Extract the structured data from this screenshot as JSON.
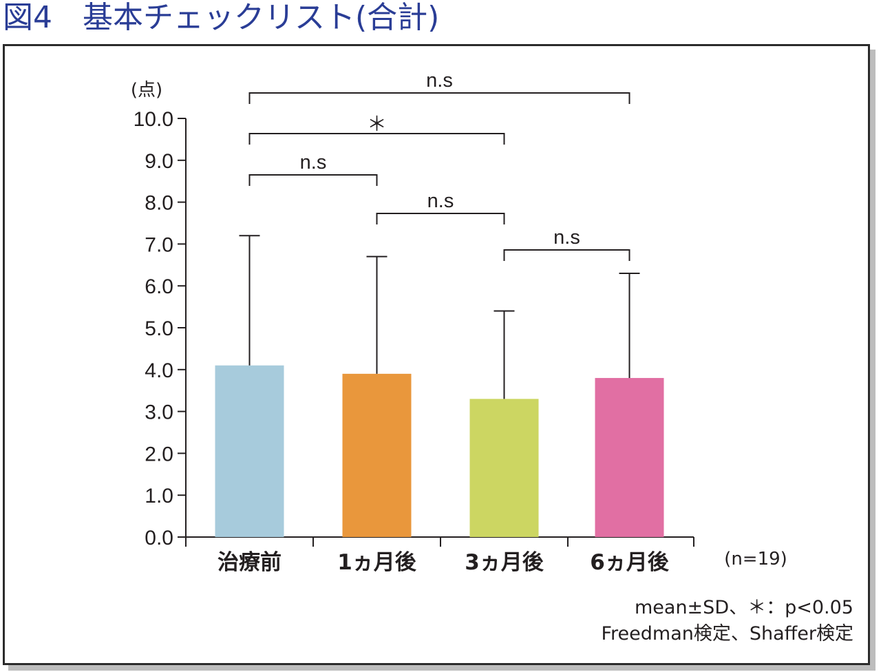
{
  "title": "図4　基本チェックリスト(合計)",
  "chart_data": {
    "type": "bar",
    "title": "図4　基本チェックリスト(合計)",
    "ylabel": "(点)",
    "ylim": [
      0,
      10
    ],
    "yticks": [
      "0.0",
      "1.0",
      "2.0",
      "3.0",
      "4.0",
      "5.0",
      "6.0",
      "7.0",
      "8.0",
      "9.0",
      "10.0"
    ],
    "categories": [
      "治療前",
      "1ヵ月後",
      "3ヵ月後",
      "6ヵ月後"
    ],
    "values": [
      4.1,
      3.9,
      3.3,
      3.8
    ],
    "error_upper": [
      7.2,
      6.7,
      5.4,
      6.3
    ],
    "colors": [
      "#a7cbdc",
      "#e9973c",
      "#ccd662",
      "#e16fa3"
    ],
    "sample_size": "(n=19)",
    "significance": [
      {
        "from": 0,
        "to": 3,
        "label": "n.s"
      },
      {
        "from": 0,
        "to": 2,
        "label": "＊"
      },
      {
        "from": 0,
        "to": 1,
        "label": "n.s"
      },
      {
        "from": 1,
        "to": 2,
        "label": "n.s"
      },
      {
        "from": 2,
        "to": 3,
        "label": "n.s"
      }
    ],
    "notes": [
      "mean±SD、＊：p<0.05",
      "Freedman検定、Shaffer検定"
    ],
    "grid": false,
    "legend": "none"
  }
}
